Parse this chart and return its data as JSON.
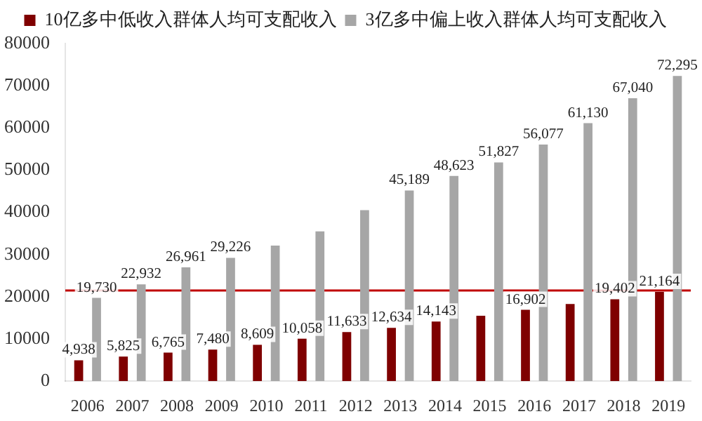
{
  "chart_data": {
    "type": "bar",
    "categories": [
      "2006",
      "2007",
      "2008",
      "2009",
      "2010",
      "2011",
      "2012",
      "2013",
      "2014",
      "2015",
      "2016",
      "2017",
      "2018",
      "2019"
    ],
    "series": [
      {
        "name": "10亿多中低收入群体人均可支配收入",
        "color": "#7f0000",
        "values": [
          4938,
          5825,
          6765,
          7480,
          8609,
          10058,
          11633,
          12634,
          14143,
          15500,
          16902,
          18300,
          19402,
          21164
        ],
        "value_labels": [
          "4,938",
          "5,825",
          "6,765",
          "7,480",
          "8,609",
          "10,058",
          "11,633",
          "12,634",
          "14,143",
          null,
          "16,902",
          null,
          "19,402",
          "21,164"
        ]
      },
      {
        "name": "3亿多中偏上收入群体人均可支配收入",
        "color": "#a6a6a6",
        "values": [
          19730,
          22932,
          26961,
          29226,
          32100,
          35500,
          40500,
          45189,
          48623,
          51827,
          56077,
          61130,
          67040,
          72295
        ],
        "value_labels": [
          "19,730",
          "22,932",
          "26,961",
          "29,226",
          null,
          null,
          null,
          "45,189",
          "48,623",
          "51,827",
          "56,077",
          "61,130",
          "67,040",
          "72,295"
        ]
      }
    ],
    "ylim": [
      0,
      80000
    ],
    "yticks": [
      0,
      10000,
      20000,
      30000,
      40000,
      50000,
      60000,
      70000,
      80000
    ],
    "ref_lines": [
      {
        "axis": "y",
        "value": 21500,
        "color": "#c00000"
      }
    ],
    "grid": false,
    "legend": "top"
  }
}
